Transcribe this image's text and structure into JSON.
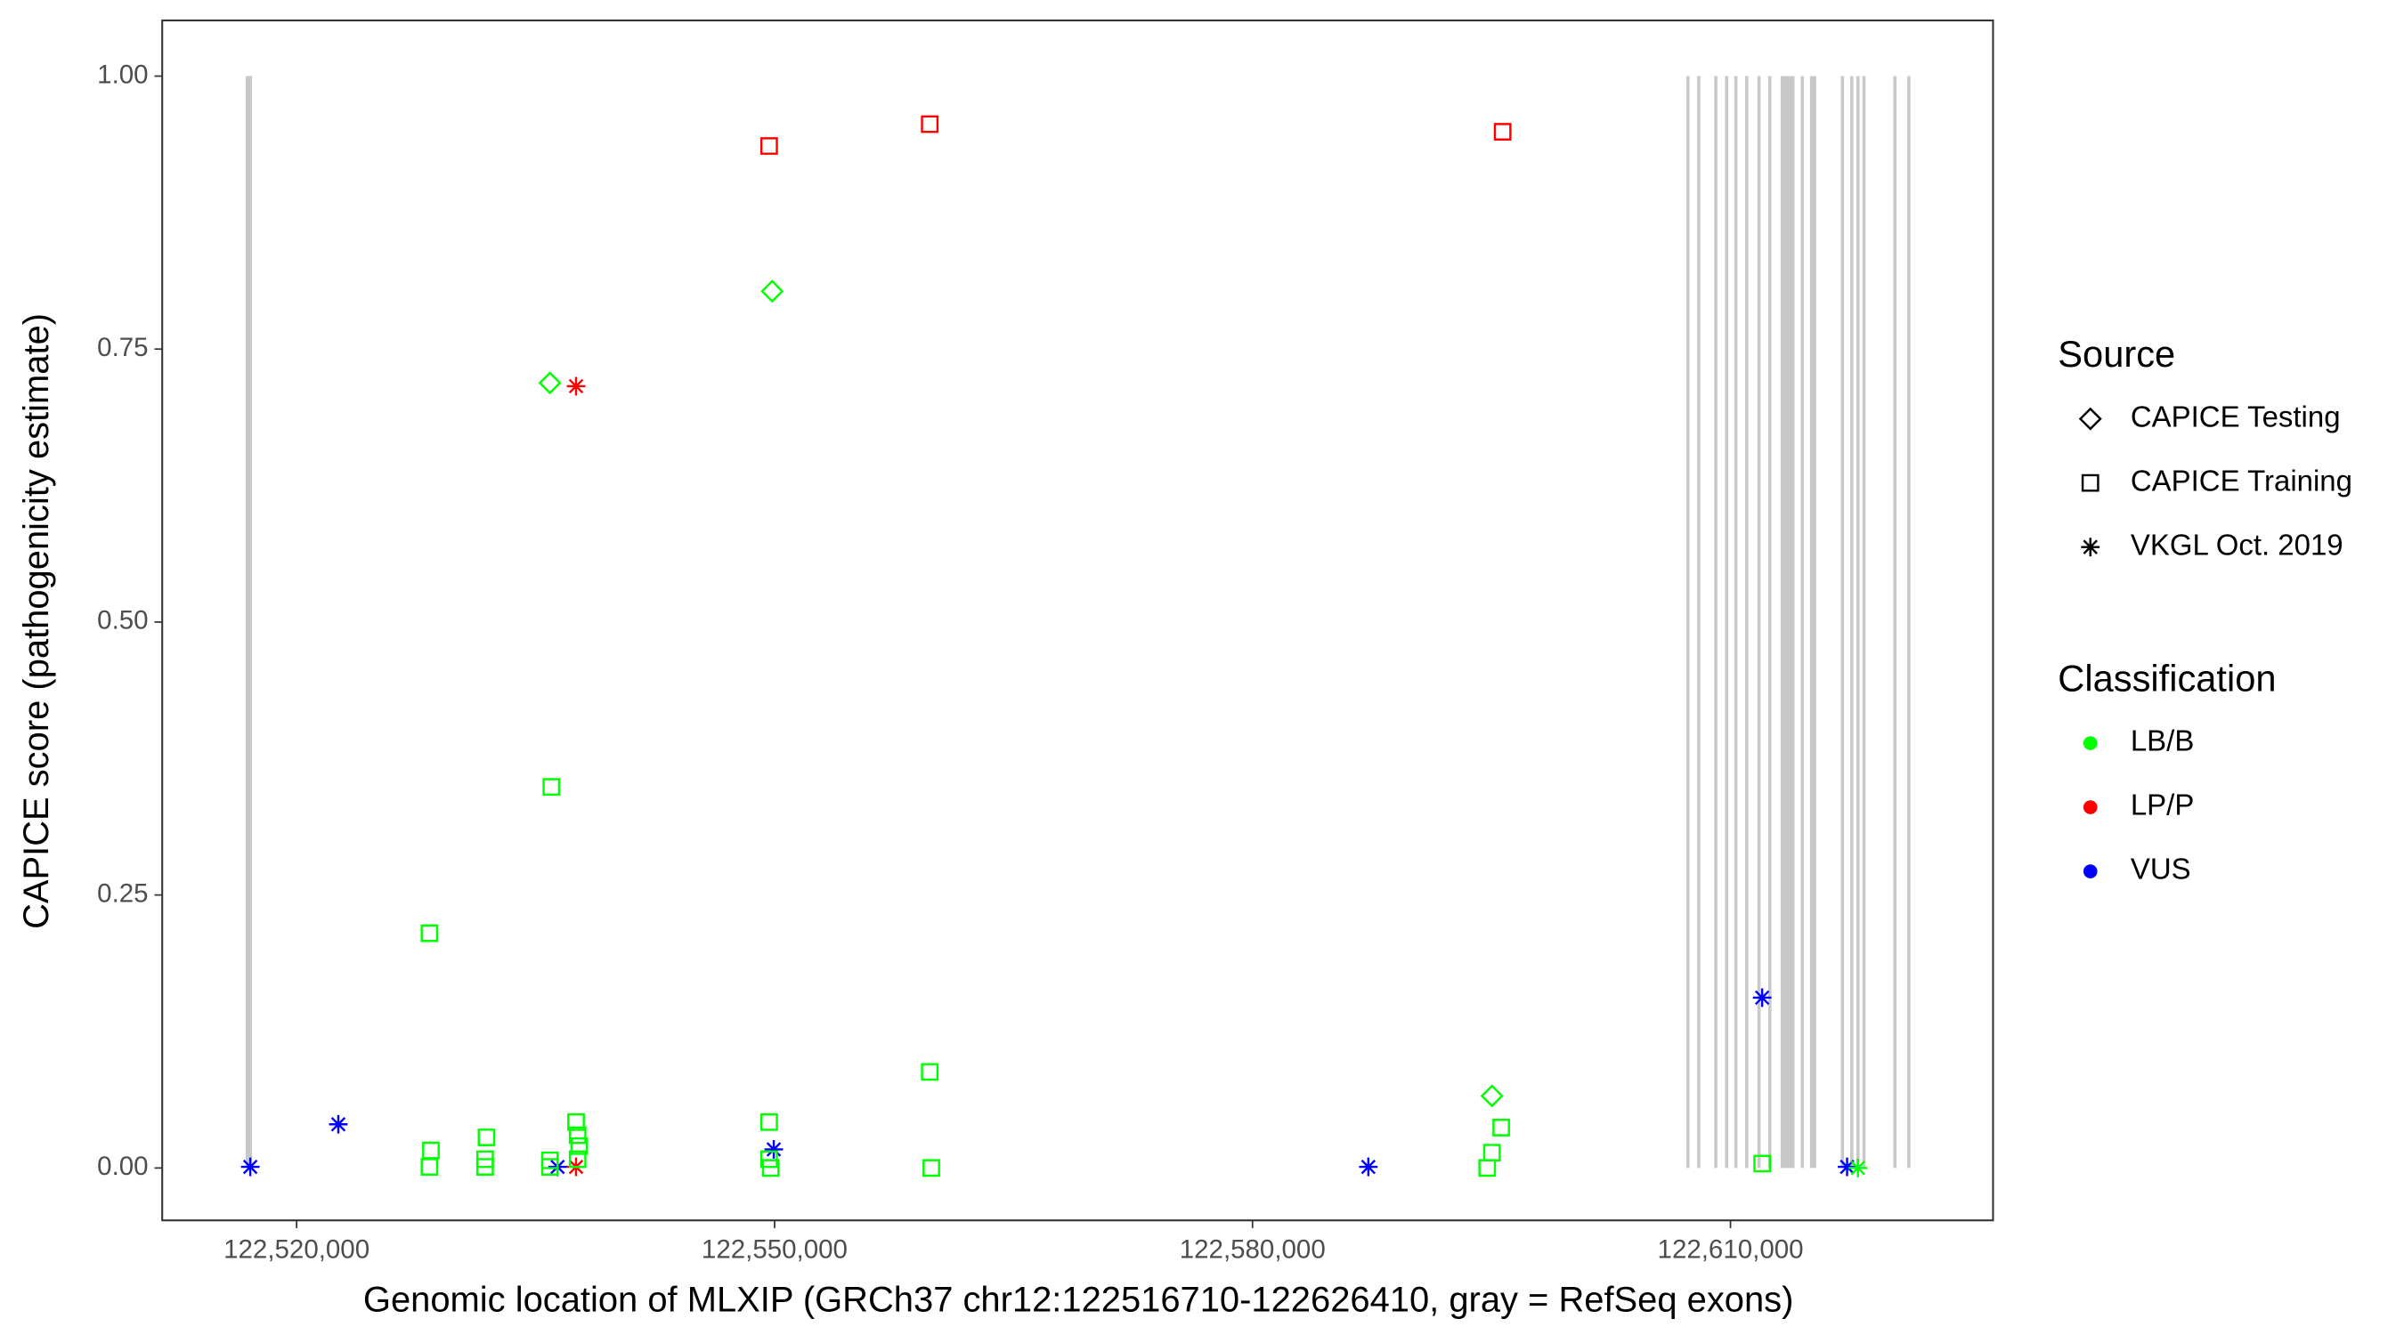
{
  "chart_data": {
    "type": "scatter",
    "x_label": "Genomic location of MLXIP (GRCh37 chr12:122516710-122626410, gray = RefSeq exons)",
    "y_label": "CAPICE score (pathogenicity estimate)",
    "xlim": [
      122511565,
      122626480
    ],
    "ylim": [
      -0.048,
      1.051
    ],
    "xticks": [
      {
        "value": 122520000,
        "label": "122,520,000"
      },
      {
        "value": 122550000,
        "label": "122,550,000"
      },
      {
        "value": 122580000,
        "label": "122,580,000"
      },
      {
        "value": 122610000,
        "label": "122,610,000"
      }
    ],
    "yticks": [
      {
        "value": 0,
        "label": "0.00"
      },
      {
        "value": 0.25,
        "label": "0.25"
      },
      {
        "value": 0.5,
        "label": "0.50"
      },
      {
        "value": 0.75,
        "label": "0.75"
      },
      {
        "value": 1,
        "label": "1.00"
      }
    ],
    "exon_color": "#c8c8c8",
    "exon_ylim": [
      0,
      1
    ],
    "exons": [
      [
        122516800,
        122517200
      ],
      [
        122607230,
        122607430
      ],
      [
        122607910,
        122608110
      ],
      [
        122608980,
        122609180
      ],
      [
        122609660,
        122609860
      ],
      [
        122610240,
        122610440
      ],
      [
        122610920,
        122611120
      ],
      [
        122611690,
        122611890
      ],
      [
        122612370,
        122612570
      ],
      [
        122613150,
        122614020
      ],
      [
        122614410,
        122614610
      ],
      [
        122614990,
        122615380
      ],
      [
        122616930,
        122617130
      ],
      [
        122617510,
        122617710
      ],
      [
        122617900,
        122618100
      ],
      [
        122618280,
        122618480
      ],
      [
        122620220,
        122620420
      ],
      [
        122621100,
        122621300
      ]
    ],
    "legends": [
      {
        "title": "Source",
        "entries": [
          {
            "label": "CAPICE Testing",
            "shape": "diamond"
          },
          {
            "label": "CAPICE Training",
            "shape": "square"
          },
          {
            "label": "VKGL Oct. 2019",
            "shape": "asterisk"
          }
        ]
      },
      {
        "title": "Classification",
        "entries": [
          {
            "label": "LB/B",
            "color": "#00ff00"
          },
          {
            "label": "LP/P",
            "color": "#ff0000"
          },
          {
            "label": "VUS",
            "color": "#0000ff"
          }
        ]
      }
    ],
    "points": [
      {
        "x": 122517092,
        "y": 0.001,
        "source": "VKGL Oct. 2019",
        "classification": "VUS"
      },
      {
        "x": 122522617,
        "y": 0.04,
        "source": "VKGL Oct. 2019",
        "classification": "VUS"
      },
      {
        "x": 122536380,
        "y": 0.001,
        "source": "VKGL Oct. 2019",
        "classification": "VUS"
      },
      {
        "x": 122549950,
        "y": 0.017,
        "source": "VKGL Oct. 2019",
        "classification": "VUS"
      },
      {
        "x": 122587270,
        "y": 0.001,
        "source": "VKGL Oct. 2019",
        "classification": "VUS"
      },
      {
        "x": 122611990,
        "y": 0.156,
        "source": "VKGL Oct. 2019",
        "classification": "VUS"
      },
      {
        "x": 122617320,
        "y": 0.001,
        "source": "VKGL Oct. 2019",
        "classification": "VUS"
      },
      {
        "x": 122537540,
        "y": 0.716,
        "source": "VKGL Oct. 2019",
        "classification": "LP/P"
      },
      {
        "x": 122537540,
        "y": 0.001,
        "source": "VKGL Oct. 2019",
        "classification": "LP/P"
      },
      {
        "x": 122618000,
        "y": 0.0,
        "source": "VKGL Oct. 2019",
        "classification": "LB/B"
      },
      {
        "x": 122549660,
        "y": 0.936,
        "source": "CAPICE Training",
        "classification": "LP/P"
      },
      {
        "x": 122559740,
        "y": 0.956,
        "source": "CAPICE Training",
        "classification": "LP/P"
      },
      {
        "x": 122595700,
        "y": 0.949,
        "source": "CAPICE Training",
        "classification": "LP/P"
      },
      {
        "x": 122535900,
        "y": 0.719,
        "source": "CAPICE Testing",
        "classification": "LB/B"
      },
      {
        "x": 122549850,
        "y": 0.803,
        "source": "CAPICE Testing",
        "classification": "LB/B"
      },
      {
        "x": 122595030,
        "y": 0.066,
        "source": "CAPICE Testing",
        "classification": "LB/B"
      },
      {
        "x": 122528340,
        "y": 0.215,
        "source": "CAPICE Training",
        "classification": "LB/B"
      },
      {
        "x": 122528430,
        "y": 0.016,
        "source": "CAPICE Training",
        "classification": "LB/B"
      },
      {
        "x": 122528340,
        "y": 0.001,
        "source": "CAPICE Training",
        "classification": "LB/B"
      },
      {
        "x": 122531920,
        "y": 0.028,
        "source": "CAPICE Training",
        "classification": "LB/B"
      },
      {
        "x": 122531830,
        "y": 0.008,
        "source": "CAPICE Training",
        "classification": "LB/B"
      },
      {
        "x": 122531830,
        "y": 0.001,
        "source": "CAPICE Training",
        "classification": "LB/B"
      },
      {
        "x": 122535990,
        "y": 0.349,
        "source": "CAPICE Training",
        "classification": "LB/B"
      },
      {
        "x": 122535900,
        "y": 0.007,
        "source": "CAPICE Training",
        "classification": "LB/B"
      },
      {
        "x": 122535900,
        "y": 0.001,
        "source": "CAPICE Training",
        "classification": "LB/B"
      },
      {
        "x": 122537540,
        "y": 0.042,
        "source": "CAPICE Training",
        "classification": "LB/B"
      },
      {
        "x": 122537640,
        "y": 0.03,
        "source": "CAPICE Training",
        "classification": "LB/B"
      },
      {
        "x": 122537740,
        "y": 0.02,
        "source": "CAPICE Training",
        "classification": "LB/B"
      },
      {
        "x": 122537640,
        "y": 0.008,
        "source": "CAPICE Training",
        "classification": "LB/B"
      },
      {
        "x": 122549660,
        "y": 0.042,
        "source": "CAPICE Training",
        "classification": "LB/B"
      },
      {
        "x": 122549660,
        "y": 0.008,
        "source": "CAPICE Training",
        "classification": "LB/B"
      },
      {
        "x": 122549760,
        "y": 0.0,
        "source": "CAPICE Training",
        "classification": "LB/B"
      },
      {
        "x": 122559740,
        "y": 0.088,
        "source": "CAPICE Training",
        "classification": "LB/B"
      },
      {
        "x": 122559840,
        "y": 0.0,
        "source": "CAPICE Training",
        "classification": "LB/B"
      },
      {
        "x": 122595030,
        "y": 0.014,
        "source": "CAPICE Training",
        "classification": "LB/B"
      },
      {
        "x": 122594730,
        "y": 0.0,
        "source": "CAPICE Training",
        "classification": "LB/B"
      },
      {
        "x": 122595610,
        "y": 0.037,
        "source": "CAPICE Training",
        "classification": "LB/B"
      },
      {
        "x": 122611990,
        "y": 0.004,
        "source": "CAPICE Training",
        "classification": "LB/B"
      }
    ]
  }
}
